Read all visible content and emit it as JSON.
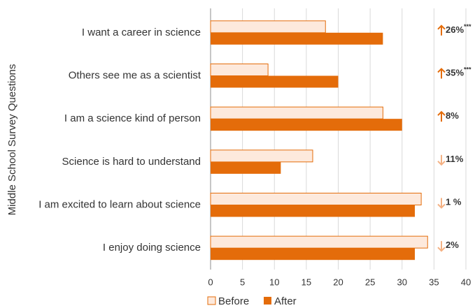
{
  "chart_data": {
    "type": "bar",
    "orientation": "horizontal",
    "y_label": "Middle School Survey Questions",
    "categories": [
      "I want a career in science",
      "Others see me as a scientist",
      "I am a science kind of person",
      "Science is hard to understand",
      "I am excited to learn about science",
      "I enjoy doing science"
    ],
    "series": [
      {
        "name": "Before",
        "color": "#fde9dc",
        "edge": "#e46c0a",
        "values": [
          18,
          9,
          27,
          16,
          33,
          34
        ]
      },
      {
        "name": "After",
        "color": "#e46c0a",
        "values": [
          27,
          20,
          30,
          11,
          32,
          32
        ]
      }
    ],
    "xlim": [
      0,
      40
    ],
    "xticks": [
      0,
      5,
      10,
      15,
      20,
      25,
      30,
      35,
      40
    ],
    "grid": true,
    "legend": "bottom",
    "annotations": [
      {
        "text": "26%",
        "sup": "***",
        "direction": "up"
      },
      {
        "text": "35%",
        "sup": "***",
        "direction": "up"
      },
      {
        "text": "8%",
        "direction": "up"
      },
      {
        "text": "11%",
        "direction": "down"
      },
      {
        "text": "1 %",
        "direction": "down"
      },
      {
        "text": "2%",
        "direction": "down"
      }
    ],
    "arrow_colors": {
      "up": "#e46c0a",
      "down": "#f4b183"
    }
  }
}
